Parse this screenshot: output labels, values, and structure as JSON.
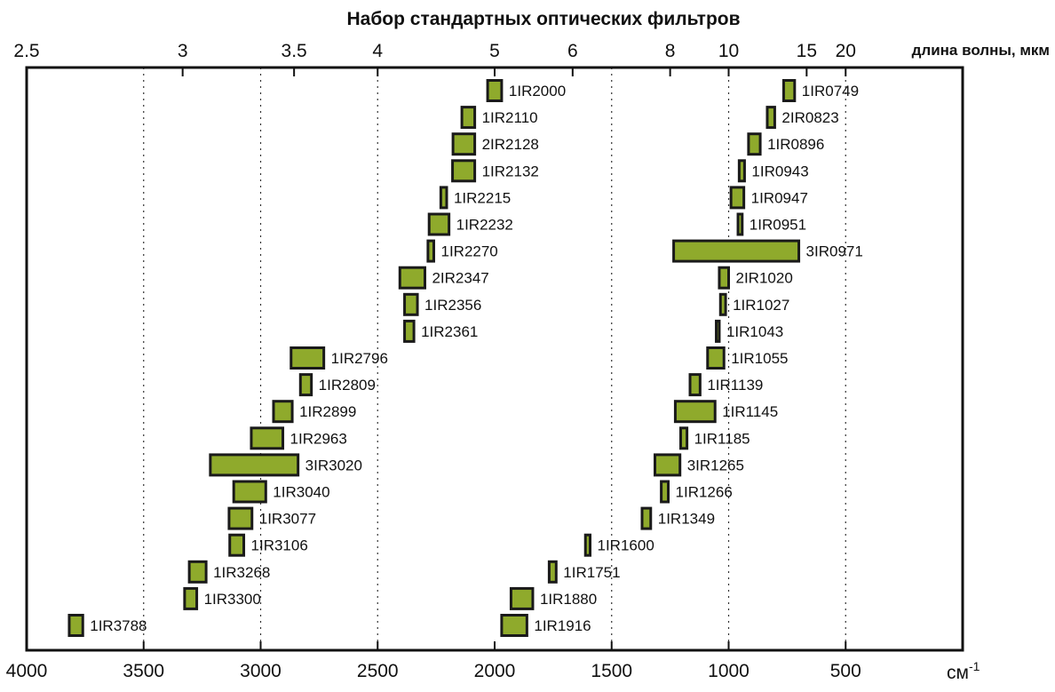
{
  "chart_data": {
    "type": "bar",
    "title": "Набор стандартных оптических фильтров",
    "x_bottom": {
      "label": "см",
      "label_sup": "-1",
      "range": [
        4000,
        0
      ],
      "ticks": [
        4000,
        3500,
        3000,
        2500,
        2000,
        1500,
        1000,
        500
      ],
      "tick_labels": [
        "4000",
        "3500",
        "3000",
        "2500",
        "2000",
        "1500",
        "1000",
        "500"
      ]
    },
    "x_top": {
      "label": "длина волны, мкм",
      "ticks": [
        2.5,
        3,
        3.5,
        4,
        5,
        6,
        8,
        10,
        15,
        20
      ],
      "tick_labels": [
        "2.5",
        "3",
        "3.5",
        "4",
        "5",
        "6",
        "8",
        "10",
        "15",
        "20"
      ]
    },
    "gridlines": [
      3500,
      3000,
      2500,
      1500,
      1000,
      500
    ],
    "colors": {
      "bar_fill": "#8faa2c",
      "bar_stroke": "#1a1a1a"
    },
    "rows": [
      [
        {
          "name": "1IR2000",
          "from": 2030,
          "to": 1970
        },
        {
          "name": "1IR0749",
          "from": 765,
          "to": 718
        }
      ],
      [
        {
          "name": "1IR2110",
          "from": 2140,
          "to": 2085
        },
        {
          "name": "2IR0823",
          "from": 835,
          "to": 803
        }
      ],
      [
        {
          "name": "2IR2128",
          "from": 2178,
          "to": 2085
        },
        {
          "name": "1IR0896",
          "from": 915,
          "to": 865
        }
      ],
      [
        {
          "name": "1IR2132",
          "from": 2180,
          "to": 2085
        },
        {
          "name": "1IR0943",
          "from": 955,
          "to": 932
        }
      ],
      [
        {
          "name": "1IR2215",
          "from": 2230,
          "to": 2205
        },
        {
          "name": "1IR0947",
          "from": 990,
          "to": 935
        }
      ],
      [
        {
          "name": "1IR2232",
          "from": 2280,
          "to": 2195
        },
        {
          "name": "1IR0951",
          "from": 960,
          "to": 942
        }
      ],
      [
        {
          "name": "1IR2270",
          "from": 2285,
          "to": 2260
        },
        {
          "name": "3IR0971",
          "from": 1235,
          "to": 700
        }
      ],
      [
        {
          "name": "2IR2347",
          "from": 2405,
          "to": 2298
        },
        {
          "name": "2IR1020",
          "from": 1040,
          "to": 1000
        }
      ],
      [
        {
          "name": "1IR2356",
          "from": 2385,
          "to": 2330
        },
        {
          "name": "1IR1027",
          "from": 1035,
          "to": 1013
        }
      ],
      [
        {
          "name": "1IR2361",
          "from": 2385,
          "to": 2345
        },
        {
          "name": "1IR1043",
          "from": 1053,
          "to": 1040
        }
      ],
      [
        {
          "name": "1IR2796",
          "from": 2870,
          "to": 2730
        },
        {
          "name": "1IR1055",
          "from": 1090,
          "to": 1020
        }
      ],
      [
        {
          "name": "1IR2809",
          "from": 2830,
          "to": 2783
        },
        {
          "name": "1IR1139",
          "from": 1165,
          "to": 1122
        }
      ],
      [
        {
          "name": "1IR2899",
          "from": 2945,
          "to": 2865
        },
        {
          "name": "1IR1145",
          "from": 1228,
          "to": 1058
        }
      ],
      [
        {
          "name": "1IR2963",
          "from": 3040,
          "to": 2905
        },
        {
          "name": "1IR1185",
          "from": 1205,
          "to": 1178
        }
      ],
      [
        {
          "name": "3IR3020",
          "from": 3215,
          "to": 2840
        },
        {
          "name": "3IR1265",
          "from": 1315,
          "to": 1208
        }
      ],
      [
        {
          "name": "1IR3040",
          "from": 3115,
          "to": 2978
        },
        {
          "name": "1IR1266",
          "from": 1288,
          "to": 1258
        }
      ],
      [
        {
          "name": "1IR3077",
          "from": 3135,
          "to": 3037
        },
        {
          "name": "1IR1349",
          "from": 1370,
          "to": 1333
        }
      ],
      [
        {
          "name": "1IR3106",
          "from": 3132,
          "to": 3072
        },
        {
          "name": "1IR1600",
          "from": 1612,
          "to": 1592
        }
      ],
      [
        {
          "name": "1IR3268",
          "from": 3305,
          "to": 3233
        },
        {
          "name": "1IR1751",
          "from": 1767,
          "to": 1737
        }
      ],
      [
        {
          "name": "1IR3300",
          "from": 3325,
          "to": 3273
        },
        {
          "name": "1IR1880",
          "from": 1930,
          "to": 1837
        }
      ],
      [
        {
          "name": "1IR3788",
          "from": 3818,
          "to": 3760
        },
        {
          "name": "1IR1916",
          "from": 1970,
          "to": 1862
        }
      ]
    ]
  }
}
